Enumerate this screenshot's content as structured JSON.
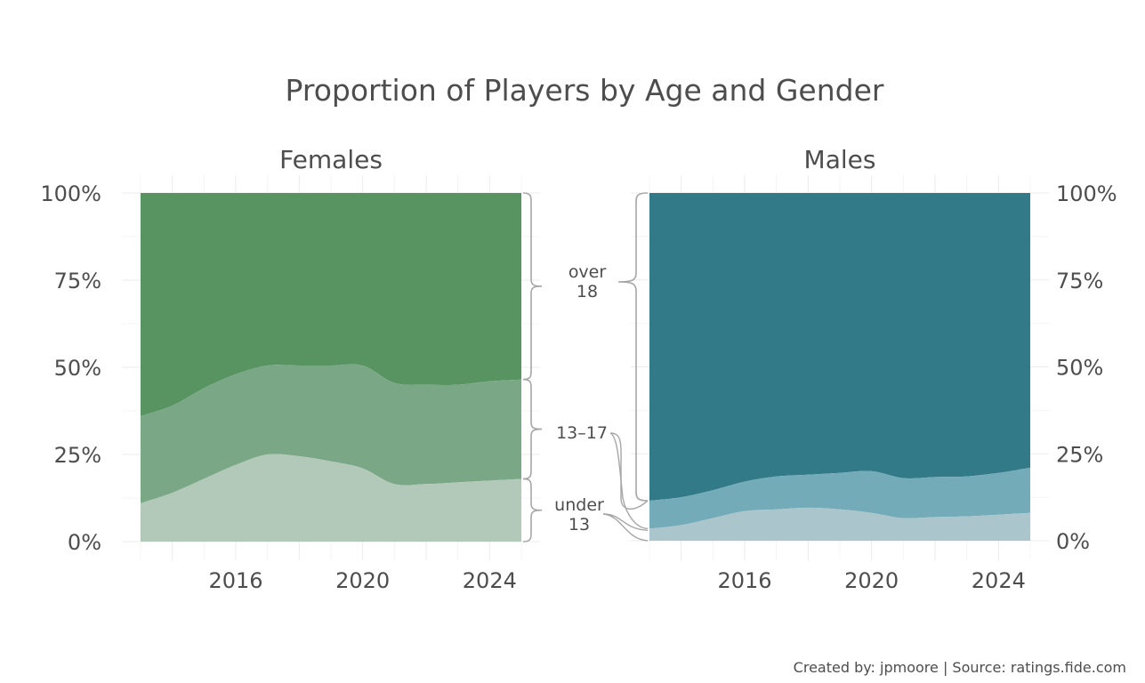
{
  "chart_data": {
    "type": "area",
    "title": "Proportion of Players by Age and Gender",
    "caption": "Created by: jpmoore | Source: ratings.fide.com",
    "x": [
      2013,
      2014,
      2015,
      2016,
      2017,
      2018,
      2019,
      2020,
      2021,
      2022,
      2023,
      2024,
      2025
    ],
    "xticks": [
      "2016",
      "2020",
      "2024"
    ],
    "xlim": [
      2013,
      2025
    ],
    "ylim": [
      0,
      1
    ],
    "yticks": [
      "0%",
      "25%",
      "50%",
      "75%",
      "100%"
    ],
    "grid": true,
    "age_groups": [
      "under 13",
      "13–17",
      "over 18"
    ],
    "panels": [
      {
        "name": "Females",
        "y_axis_side": "left",
        "colors": {
          "under 13": "#b2c9b9",
          "13–17": "#7aa886",
          "over 18": "#579461"
        },
        "under_13": [
          0.11,
          0.14,
          0.18,
          0.22,
          0.25,
          0.245,
          0.23,
          0.21,
          0.165,
          0.165,
          0.17,
          0.175,
          0.18
        ],
        "13_17": [
          0.25,
          0.25,
          0.26,
          0.26,
          0.255,
          0.26,
          0.275,
          0.295,
          0.29,
          0.285,
          0.28,
          0.285,
          0.285
        ]
      },
      {
        "name": "Males",
        "y_axis_side": "right",
        "colors": {
          "under 13": "#aac5cc",
          "13–17": "#74abb8",
          "over 18": "#337a89"
        },
        "under_13": [
          0.035,
          0.045,
          0.065,
          0.085,
          0.09,
          0.095,
          0.09,
          0.08,
          0.065,
          0.068,
          0.07,
          0.075,
          0.08
        ],
        "13_17": [
          0.08,
          0.08,
          0.08,
          0.085,
          0.095,
          0.095,
          0.105,
          0.12,
          0.115,
          0.115,
          0.115,
          0.12,
          0.13
        ]
      }
    ],
    "bracket_labels": [
      {
        "group": "over 18",
        "lines": [
          "over",
          "18"
        ]
      },
      {
        "group": "13–17",
        "lines": [
          "13–17"
        ]
      },
      {
        "group": "under 13",
        "lines": [
          "under",
          "13"
        ]
      }
    ]
  }
}
